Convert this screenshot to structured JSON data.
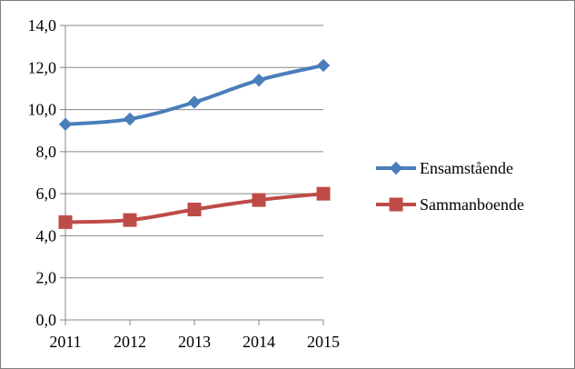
{
  "chart_data": {
    "type": "line",
    "title": "",
    "xlabel": "",
    "ylabel": "",
    "categories": [
      "2011",
      "2012",
      "2013",
      "2014",
      "2015"
    ],
    "ylim": [
      0,
      14
    ],
    "y_ticks": [
      "0,0",
      "2,0",
      "4,0",
      "6,0",
      "8,0",
      "10,0",
      "12,0",
      "14,0"
    ],
    "grid": "horizontal",
    "legend_position": "right",
    "series": [
      {
        "name": "Ensamstående",
        "values": [
          9.3,
          9.55,
          10.35,
          11.4,
          12.1
        ],
        "color": "#4a7ebb",
        "marker": "diamond"
      },
      {
        "name": "Sammanboende",
        "values": [
          4.65,
          4.75,
          5.25,
          5.7,
          6.0
        ],
        "color": "#be4b48",
        "marker": "square"
      }
    ]
  }
}
